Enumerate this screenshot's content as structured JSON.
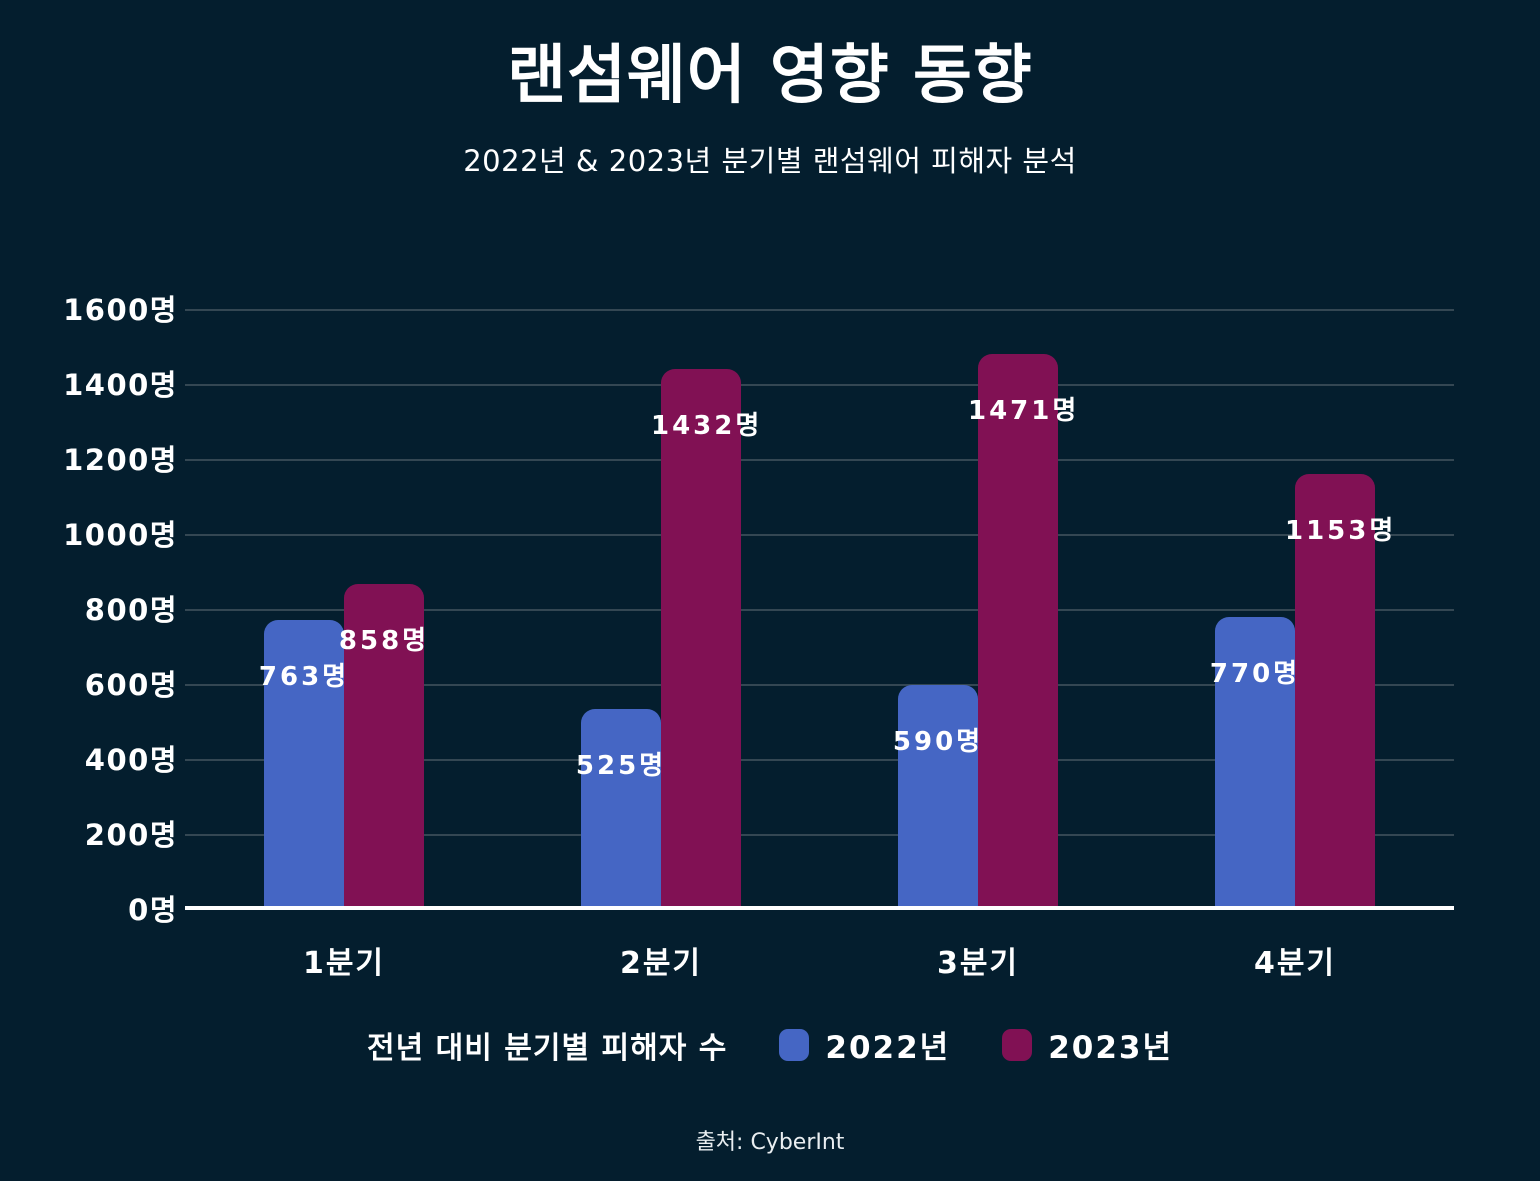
{
  "title": "랜섬웨어 영향 동향",
  "subtitle": "2022년 & 2023년 분기별 랜섬웨어 피해자 분석",
  "source": "출처: CyberInt",
  "legend": {
    "label": "전년 대비 분기별 피해자 수",
    "items": [
      {
        "label": "2022년",
        "color": "#4566C4"
      },
      {
        "label": "2023년",
        "color": "#811154"
      }
    ]
  },
  "colors": {
    "background": "#041E2E",
    "gridline": "#344753",
    "axis_line": "#FFFFFF",
    "text": "#FFFFFF",
    "series_2022": "#4566C4",
    "series_2023": "#811154"
  },
  "chart_data": {
    "type": "bar",
    "categories": [
      "1분기",
      "2분기",
      "3분기",
      "4분기"
    ],
    "series": [
      {
        "name": "2022년",
        "color": "#4566C4",
        "values": [
          763,
          525,
          590,
          770
        ]
      },
      {
        "name": "2023년",
        "color": "#811154",
        "values": [
          858,
          1432,
          1471,
          1153
        ]
      }
    ],
    "unit": "명",
    "title": "랜섬웨어 영향 동향",
    "subtitle": "2022년 & 2023년 분기별 랜섬웨어 피해자 분석",
    "xlabel": "",
    "ylabel": "",
    "ylim": [
      0,
      1600
    ],
    "y_step": 200,
    "y_ticks": [
      "0명",
      "200명",
      "400명",
      "600명",
      "800명",
      "1000명",
      "1200명",
      "1400명",
      "1600명"
    ],
    "grid": true,
    "legend_position": "bottom",
    "data_labels": [
      "763명",
      "525명",
      "590명",
      "770명",
      "858명",
      "1432명",
      "1471명",
      "1153명"
    ]
  }
}
